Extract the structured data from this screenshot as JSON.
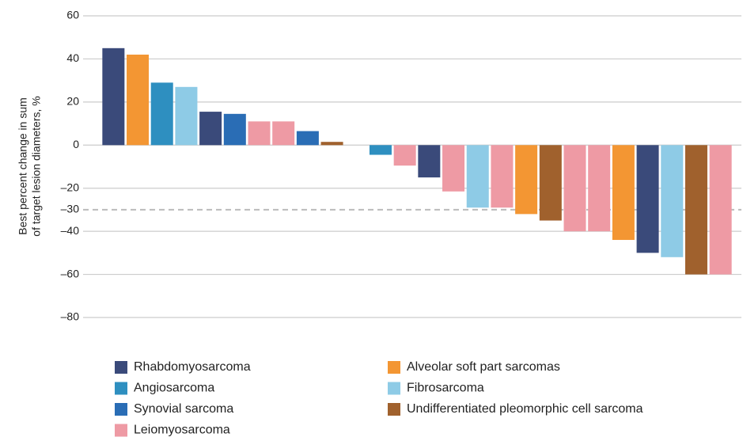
{
  "chart_data": {
    "type": "waterfall",
    "ylabel": [
      "Best percent change in sum",
      "of target lesion diameters, %"
    ],
    "ylim": [
      -80,
      60
    ],
    "yticks": [
      60,
      40,
      20,
      0,
      {
        "value": -20,
        "label": "–20"
      },
      {
        "value": -30,
        "label": "–30"
      },
      {
        "value": -40,
        "label": "–40"
      },
      {
        "value": -60,
        "label": "–60"
      },
      {
        "value": -80,
        "label": "–80"
      }
    ],
    "threshold": -30,
    "grid": true,
    "series": [
      {
        "name": "Rhabdomyosarcoma",
        "color": "#3a4a7a",
        "values": [
          45,
          null,
          null,
          null,
          15.5,
          null,
          null,
          null,
          null,
          null,
          null,
          null,
          null,
          -15,
          null,
          null,
          null,
          null,
          null,
          null,
          null,
          null,
          -50,
          null,
          null,
          null
        ]
      },
      {
        "name": "Angiosarcoma",
        "color": "#2e8fc0",
        "values": [
          null,
          null,
          29,
          null,
          null,
          null,
          null,
          null,
          null,
          null,
          null,
          -4.5,
          null,
          null,
          null,
          null,
          null,
          null,
          null,
          null,
          null,
          null,
          null,
          null,
          null,
          null
        ]
      },
      {
        "name": "Synovial sarcoma",
        "color": "#2a6db5",
        "values": [
          null,
          null,
          null,
          null,
          null,
          14.5,
          null,
          null,
          6.5,
          null,
          null,
          null,
          null,
          null,
          null,
          null,
          null,
          null,
          null,
          null,
          null,
          null,
          null,
          null,
          null,
          null
        ]
      },
      {
        "name": "Leiomyosarcoma",
        "color": "#ee9aa4",
        "values": [
          null,
          null,
          null,
          null,
          null,
          null,
          11,
          11,
          null,
          null,
          null,
          null,
          -9.5,
          null,
          -21.5,
          null,
          -29,
          null,
          null,
          -40,
          -40,
          null,
          null,
          null,
          null,
          -60
        ]
      },
      {
        "name": "Alveolar soft part sarcomas",
        "color": "#f39633",
        "values": [
          null,
          42,
          null,
          null,
          null,
          null,
          null,
          null,
          null,
          null,
          null,
          null,
          null,
          null,
          null,
          null,
          null,
          -32,
          null,
          null,
          null,
          -44,
          null,
          null,
          null,
          null
        ]
      },
      {
        "name": "Fibrosarcoma",
        "color": "#8ecbe6",
        "values": [
          null,
          null,
          null,
          27,
          null,
          null,
          null,
          null,
          null,
          null,
          null,
          null,
          null,
          null,
          null,
          -29,
          null,
          null,
          null,
          null,
          null,
          null,
          null,
          -52,
          null,
          null
        ]
      },
      {
        "name": "Undifferentiated pleomorphic cell sarcoma",
        "color": "#a0612d",
        "values": [
          null,
          null,
          null,
          null,
          null,
          null,
          null,
          null,
          null,
          1.5,
          null,
          null,
          null,
          null,
          null,
          null,
          null,
          null,
          -35,
          null,
          null,
          null,
          null,
          null,
          -60,
          null
        ]
      }
    ]
  }
}
